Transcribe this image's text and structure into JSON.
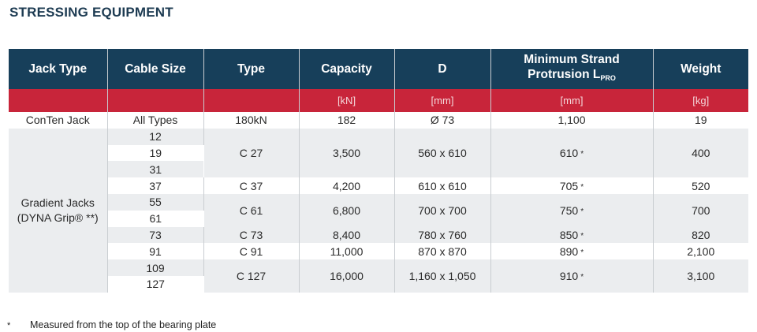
{
  "title": "STRESSING EQUIPMENT",
  "headers": {
    "jack_type": "Jack Type",
    "cable_size": "Cable Size",
    "type": "Type",
    "capacity": "Capacity",
    "d": "D",
    "protrusion_line1": "Minimum Strand",
    "protrusion_line2": "Protrusion L",
    "protrusion_sub": "PRO",
    "weight": "Weight"
  },
  "units": {
    "capacity": "[kN]",
    "d": "[mm]",
    "protrusion": "[mm]",
    "weight": "[kg]"
  },
  "conten": {
    "jack_type": "ConTen Jack",
    "cable_size": "All Types",
    "type": "180kN",
    "capacity": "182",
    "d": "Ø 73",
    "protrusion": "1,100",
    "weight": "19"
  },
  "gradient": {
    "jack_type_line1": "Gradient Jacks",
    "jack_type_line2": "(DYNA Grip® **)",
    "cable_sizes": [
      "12",
      "19",
      "31",
      "37",
      "55",
      "61",
      "73",
      "91",
      "109",
      "127"
    ],
    "groups": [
      {
        "type": "C 27",
        "capacity": "3,500",
        "d": "560 x 610",
        "protrusion": "610",
        "star": "*",
        "weight": "400"
      },
      {
        "type": "C 37",
        "capacity": "4,200",
        "d": "610 x 610",
        "protrusion": "705",
        "star": "*",
        "weight": "520"
      },
      {
        "type": "C 61",
        "capacity": "6,800",
        "d": "700 x 700",
        "protrusion": "750",
        "star": "*",
        "weight": "700"
      },
      {
        "type": "C 73",
        "capacity": "8,400",
        "d": "780 x 760",
        "protrusion": "850",
        "star": "*",
        "weight": "820"
      },
      {
        "type": "C 91",
        "capacity": "11,000",
        "d": "870 x 870",
        "protrusion": "890",
        "star": "*",
        "weight": "2,100"
      },
      {
        "type": "C 127",
        "capacity": "16,000",
        "d": "1,160 x 1,050",
        "protrusion": "910",
        "star": "*",
        "weight": "3,100"
      }
    ]
  },
  "footnote": {
    "symbol": "*",
    "text": "Measured from the top of the bearing plate"
  }
}
